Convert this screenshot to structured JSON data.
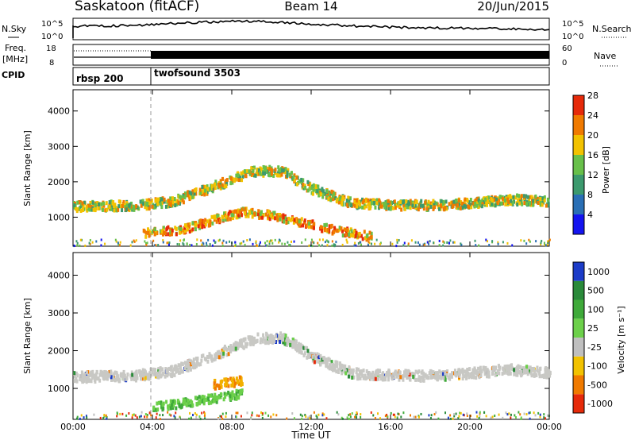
{
  "header": {
    "title_left": "Saskatoon (fitACF)",
    "title_center": "Beam 14",
    "title_right": "20/Jun/2015"
  },
  "strip_panels": {
    "nsky": {
      "left_label": "N.Sky",
      "right_label": "N.Search",
      "left_ticks": [
        "10^5",
        "10^0"
      ],
      "right_ticks": [
        "10^5",
        "10^0"
      ]
    },
    "freq": {
      "left_label_line1": "Freq.",
      "left_label_line2": "[MHz]",
      "right_label": "Nave",
      "left_ticks": [
        "18",
        "8"
      ],
      "right_ticks": [
        "60",
        "0"
      ]
    },
    "cpid": {
      "label": "CPID",
      "segments": [
        {
          "name": "rbsp 200",
          "start_hour": 0,
          "end_hour": 4
        },
        {
          "name": "twofsound 3503",
          "start_hour": 4,
          "end_hour": 24
        }
      ]
    }
  },
  "chart_data": [
    {
      "type": "heatmap",
      "panel": "power",
      "ylabel": "Slant Range [km]",
      "xlabel": "Time UT",
      "xlim_hours": [
        0,
        24
      ],
      "ylim_km": [
        180,
        4600
      ],
      "yticks": [
        1000,
        2000,
        3000,
        4000
      ],
      "xtick_labels": [
        "00:00",
        "04:00",
        "08:00",
        "12:00",
        "16:00",
        "20:00",
        "00:00"
      ],
      "colorbar_label": "Power [dB]",
      "colorbar_ticks": [
        4,
        8,
        12,
        16,
        20,
        24,
        28
      ],
      "colorbar_colors": [
        "#1414f0",
        "#2a6fb5",
        "#3c9a6e",
        "#68c04a",
        "#f2c200",
        "#f07a00",
        "#e62a0a"
      ],
      "marker_hour": 4,
      "features": [
        {
          "name": "main band",
          "points": [
            [
              0,
              1350
            ],
            [
              3,
              1380
            ],
            [
              5,
              1500
            ],
            [
              7,
              1900
            ],
            [
              9,
              2350
            ],
            [
              10.5,
              2350
            ],
            [
              12,
              1850
            ],
            [
              14,
              1450
            ],
            [
              16,
              1400
            ],
            [
              18,
              1380
            ],
            [
              20,
              1450
            ],
            [
              22,
              1550
            ],
            [
              24,
              1500
            ]
          ],
          "power_db": 18
        },
        {
          "name": "lower band",
          "points": [
            [
              3.5,
              600
            ],
            [
              5.5,
              700
            ],
            [
              7.5,
              1050
            ],
            [
              8.5,
              1200
            ],
            [
              10,
              1100
            ],
            [
              11.5,
              900
            ],
            [
              13,
              700
            ],
            [
              15,
              500
            ]
          ],
          "power_db": 22
        }
      ]
    },
    {
      "type": "heatmap",
      "panel": "velocity",
      "ylabel": "Slant Range [km]",
      "xlabel": "Time UT",
      "xlim_hours": [
        0,
        24
      ],
      "ylim_km": [
        180,
        4600
      ],
      "yticks": [
        1000,
        2000,
        3000,
        4000
      ],
      "xtick_labels": [
        "00:00",
        "04:00",
        "08:00",
        "12:00",
        "16:00",
        "20:00",
        "00:00"
      ],
      "colorbar_label": "Velocity [m s⁻¹]",
      "colorbar_ticks": [
        "1000",
        "500",
        "100",
        "25",
        "-25",
        "-100",
        "-500",
        "-1000"
      ],
      "colorbar_colors": [
        "#1c3cc8",
        "#2a8a3a",
        "#3faa3a",
        "#6cd04a",
        "#bfbfbf",
        "#f2c200",
        "#f07a00",
        "#e62a0a"
      ],
      "marker_hour": 4,
      "features": [
        {
          "name": "ground scatter band",
          "points": [
            [
              0,
              1350
            ],
            [
              3,
              1380
            ],
            [
              5,
              1500
            ],
            [
              7,
              1900
            ],
            [
              9,
              2350
            ],
            [
              10.5,
              2400
            ],
            [
              12,
              1900
            ],
            [
              14,
              1450
            ],
            [
              16,
              1400
            ],
            [
              18,
              1380
            ],
            [
              20,
              1450
            ],
            [
              22,
              1550
            ],
            [
              24,
              1450
            ]
          ],
          "velocity": 0
        },
        {
          "name": "green patch",
          "points": [
            [
              4,
              550
            ],
            [
              6,
              700
            ],
            [
              8.5,
              900
            ]
          ],
          "velocity": 150
        },
        {
          "name": "orange patch",
          "points": [
            [
              7,
              1150
            ],
            [
              8.5,
              1250
            ]
          ],
          "velocity": -100
        }
      ]
    }
  ]
}
